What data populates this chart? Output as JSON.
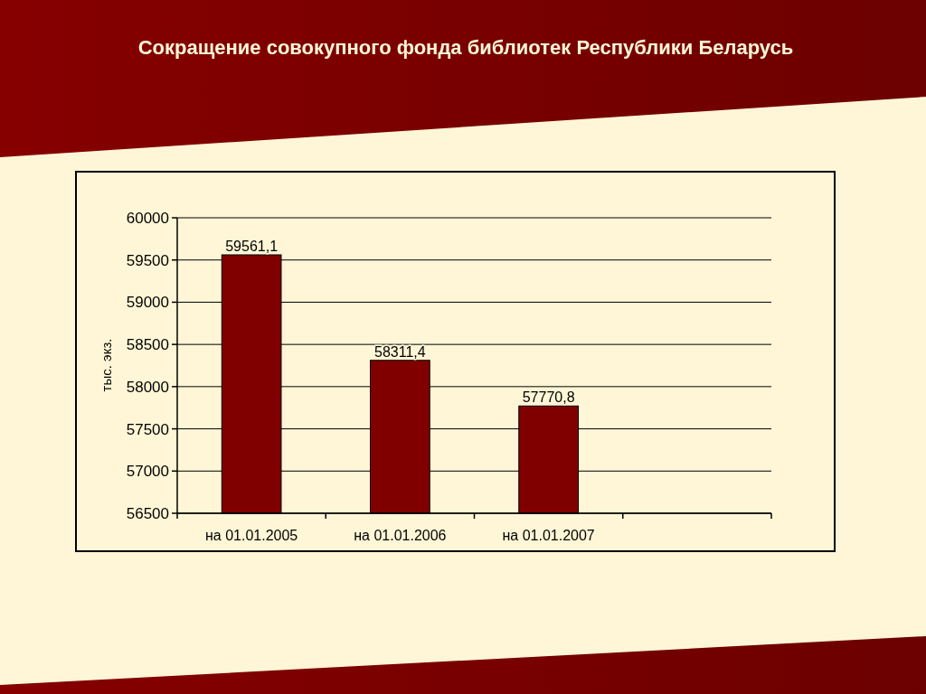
{
  "chart_data": {
    "type": "bar",
    "title": "Сокращение совокупного фонда библиотек Республики Беларусь",
    "ylabel": "тыс. экз.",
    "categories": [
      "на 01.01.2005",
      "на 01.01.2006",
      "на 01.01.2007",
      null
    ],
    "values": [
      59561.1,
      58311.4,
      57770.8,
      null
    ],
    "value_labels": [
      "59561,1",
      "58311,4",
      "57770,8",
      null
    ],
    "color": "#800000",
    "ylim": [
      56500,
      60000
    ],
    "yticks": [
      56500,
      57000,
      57500,
      58000,
      58500,
      59000,
      59500,
      60000
    ],
    "grid": "y"
  }
}
